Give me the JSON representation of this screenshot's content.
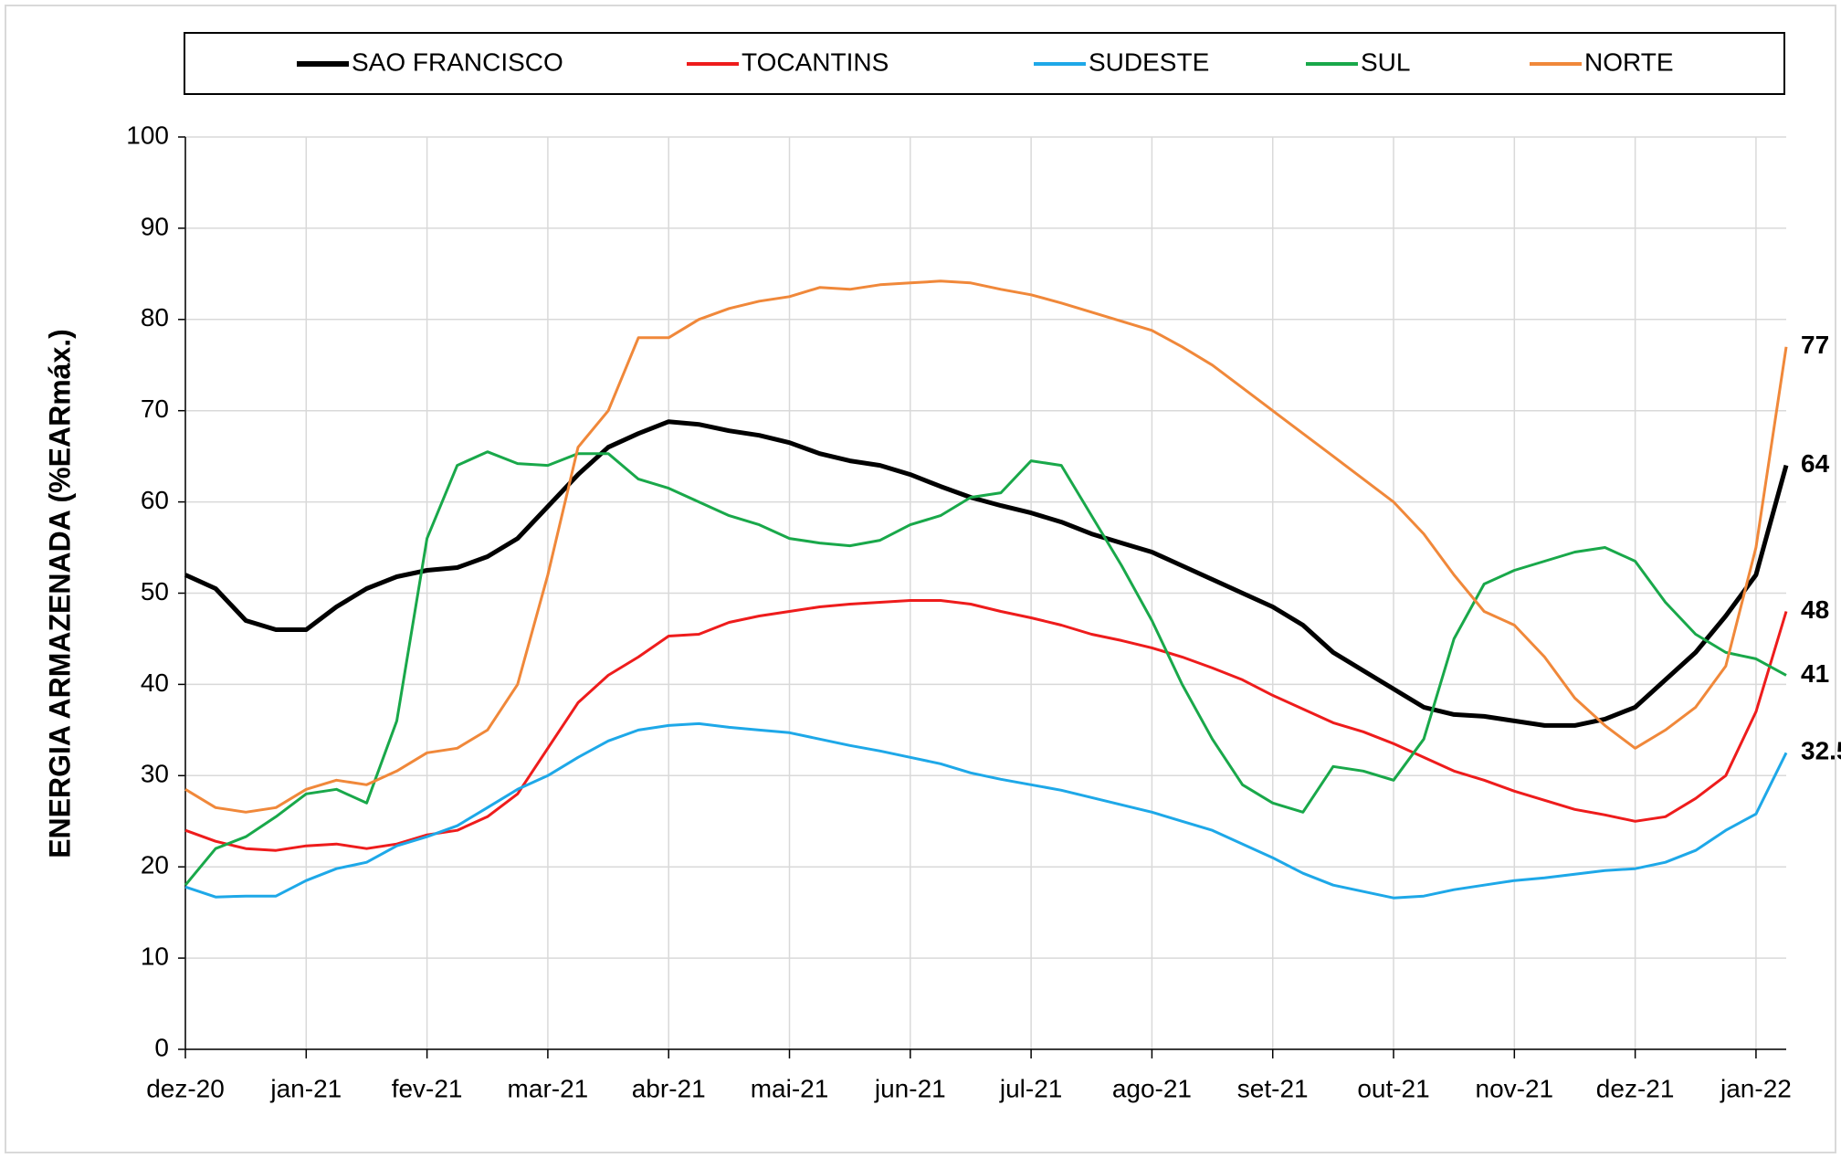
{
  "chart_data": {
    "type": "line",
    "y_label": "ENERGIA ARMAZENADA (%EARmáx.)",
    "categories": [
      "dez-20",
      null,
      null,
      null,
      "jan-21",
      null,
      null,
      null,
      "fev-21",
      null,
      null,
      null,
      "mar-21",
      null,
      null,
      null,
      "abr-21",
      null,
      null,
      null,
      "mai-21",
      null,
      null,
      null,
      "jun-21",
      null,
      null,
      null,
      "jul-21",
      null,
      null,
      null,
      "ago-21",
      null,
      null,
      null,
      "set-21",
      null,
      null,
      null,
      "out-21",
      null,
      null,
      null,
      "nov-21",
      null,
      null,
      null,
      "dez-21",
      null,
      null,
      null,
      "jan-22",
      null
    ],
    "ylim": [
      0,
      100
    ],
    "yticks": [
      0,
      10,
      20,
      30,
      40,
      50,
      60,
      70,
      80,
      90,
      100
    ],
    "grid": true,
    "legend": "top",
    "series": [
      {
        "name": "SAO FRANCISCO",
        "color": "#000000",
        "label_color": "#404040",
        "width": 5,
        "values": [
          52,
          50.5,
          47,
          46,
          46,
          48.5,
          50.5,
          51.8,
          52.5,
          52.8,
          54,
          56,
          59.5,
          63,
          66,
          67.5,
          68.8,
          68.5,
          67.8,
          67.3,
          66.5,
          65.3,
          64.5,
          64,
          63,
          61.7,
          60.5,
          59.6,
          58.8,
          57.8,
          56.5,
          55.5,
          54.5,
          53,
          51.5,
          50,
          48.5,
          46.5,
          43.5,
          41.5,
          39.5,
          37.5,
          36.7,
          36.5,
          36,
          35.5,
          35.5,
          36.2,
          37.5,
          40.5,
          43.5,
          47.5,
          52,
          64
        ]
      },
      {
        "name": "TOCANTINS",
        "color": "#ee1c1c",
        "label_color": "#ee1c1c",
        "width": 3,
        "values": [
          24,
          22.8,
          22,
          21.8,
          22.3,
          22.5,
          22,
          22.5,
          23.5,
          24,
          25.5,
          28,
          33,
          38,
          41,
          43,
          45.3,
          45.5,
          46.8,
          47.5,
          48,
          48.5,
          48.8,
          49,
          49.2,
          49.2,
          48.8,
          48,
          47.3,
          46.5,
          45.5,
          44.8,
          44,
          43,
          41.8,
          40.5,
          38.8,
          37.3,
          35.8,
          34.8,
          33.5,
          32,
          30.5,
          29.5,
          28.3,
          27.3,
          26.3,
          25.7,
          25,
          25.5,
          27.5,
          30,
          37,
          48
        ]
      },
      {
        "name": "SUDESTE",
        "color": "#1ea8e8",
        "label_color": "#4472c4",
        "width": 3,
        "values": [
          17.8,
          16.7,
          16.8,
          16.8,
          18.5,
          19.8,
          20.5,
          22.3,
          23.3,
          24.5,
          26.5,
          28.5,
          30,
          32,
          33.8,
          35,
          35.5,
          35.7,
          35.3,
          35,
          34.7,
          34,
          33.3,
          32.7,
          32,
          31.3,
          30.3,
          29.6,
          29,
          28.4,
          27.6,
          26.8,
          26,
          25,
          24,
          22.5,
          21,
          19.3,
          18,
          17.3,
          16.6,
          16.8,
          17.5,
          18,
          18.5,
          18.8,
          19.2,
          19.6,
          19.8,
          20.5,
          21.8,
          24,
          25.8,
          32.5
        ]
      },
      {
        "name": "SUL",
        "color": "#19a84a",
        "label_color": "#70ad47",
        "width": 3,
        "values": [
          18,
          22,
          23.3,
          25.5,
          28,
          28.5,
          27,
          36,
          56,
          64,
          65.5,
          64.2,
          64,
          65.3,
          65.3,
          62.5,
          61.5,
          60,
          58.5,
          57.5,
          56,
          55.5,
          55.2,
          55.8,
          57.5,
          58.5,
          60.5,
          61,
          64.5,
          64,
          58.5,
          53,
          47,
          40,
          34,
          29,
          27,
          26,
          31,
          30.5,
          29.5,
          34,
          45,
          51,
          52.5,
          53.5,
          54.5,
          55,
          53.5,
          49,
          45.5,
          43.5,
          42.8,
          41
        ]
      },
      {
        "name": "NORTE",
        "color": "#f0883a",
        "label_color": "#ed7d31",
        "width": 3,
        "values": [
          28.5,
          26.5,
          26,
          26.5,
          28.5,
          29.5,
          29,
          30.5,
          32.5,
          33,
          35,
          40,
          52,
          66,
          70,
          78,
          78,
          80,
          81.2,
          82,
          82.5,
          83.5,
          83.3,
          83.8,
          84,
          84.2,
          84,
          83.3,
          82.7,
          81.8,
          80.8,
          79.8,
          78.8,
          77,
          75,
          72.5,
          70,
          67.5,
          65,
          62.5,
          60,
          56.5,
          52,
          48,
          46.5,
          43,
          38.5,
          35.5,
          33,
          35,
          37.5,
          42,
          55,
          77
        ]
      }
    ]
  }
}
